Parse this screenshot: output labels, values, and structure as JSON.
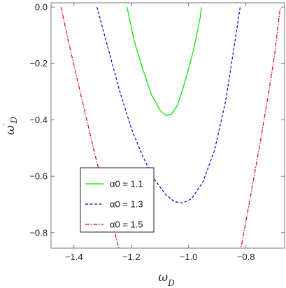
{
  "chart_data": {
    "type": "line",
    "xlabel": "ω_D",
    "ylabel": "ω′_D",
    "xlim": [
      -1.48,
      -0.665
    ],
    "ylim": [
      -0.855,
      0.015
    ],
    "xticks": [
      -1.4,
      -1.2,
      -1.0,
      -0.8
    ],
    "yticks": [
      0.0,
      -0.2,
      -0.4,
      -0.6,
      -0.8
    ],
    "xtick_labels": [
      "−1.4",
      "−1.2",
      "−1.0",
      "−0.8"
    ],
    "ytick_labels": [
      "0.0",
      "−0.2",
      "−0.4",
      "−0.6",
      "−0.8"
    ],
    "grid": false,
    "legend_position": "bottom-left",
    "series": [
      {
        "name": "α0 = 1.1",
        "color": "#00e000",
        "dash": "solid",
        "x": [
          -1.215,
          -1.19,
          -1.16,
          -1.13,
          -1.1,
          -1.08,
          -1.06,
          -1.04,
          -1.02,
          -1.0,
          -0.98,
          -0.96,
          -0.955
        ],
        "y": [
          0.0,
          -0.12,
          -0.22,
          -0.31,
          -0.365,
          -0.385,
          -0.38,
          -0.35,
          -0.29,
          -0.22,
          -0.14,
          -0.04,
          0.0
        ]
      },
      {
        "name": "α0 = 1.3",
        "color": "#0000d0",
        "dash": "dashed",
        "x": [
          -1.32,
          -1.28,
          -1.24,
          -1.2,
          -1.16,
          -1.12,
          -1.08,
          -1.05,
          -1.02,
          -0.99,
          -0.95,
          -0.91,
          -0.87,
          -0.835,
          -0.82
        ],
        "y": [
          0.0,
          -0.15,
          -0.3,
          -0.43,
          -0.53,
          -0.61,
          -0.665,
          -0.69,
          -0.695,
          -0.68,
          -0.62,
          -0.51,
          -0.33,
          -0.1,
          0.0
        ]
      },
      {
        "name": "α0 = 1.5",
        "color": "#e00000",
        "dash": "dashdot",
        "x": [
          -1.445,
          -1.42,
          -1.39,
          -1.36,
          -1.33,
          -1.3,
          -1.27,
          -1.24
        ],
        "y": [
          0.0,
          -0.12,
          -0.25,
          -0.38,
          -0.51,
          -0.63,
          -0.75,
          -0.87
        ]
      },
      {
        "name": "α0 = 1.5",
        "color": "#e00000",
        "dash": "dashdot",
        "x": [
          -0.82,
          -0.8,
          -0.775,
          -0.75,
          -0.725,
          -0.7,
          -0.68
        ],
        "y": [
          -0.87,
          -0.76,
          -0.62,
          -0.48,
          -0.33,
          -0.17,
          0.0
        ]
      }
    ],
    "legend": [
      {
        "label": "α0 = 1.1",
        "color": "#00e000",
        "dash": "solid"
      },
      {
        "label": "α0 = 1.3",
        "color": "#0000d0",
        "dash": "dashed"
      },
      {
        "label": "α0 = 1.5",
        "color": "#e00000",
        "dash": "dashdot"
      }
    ]
  }
}
